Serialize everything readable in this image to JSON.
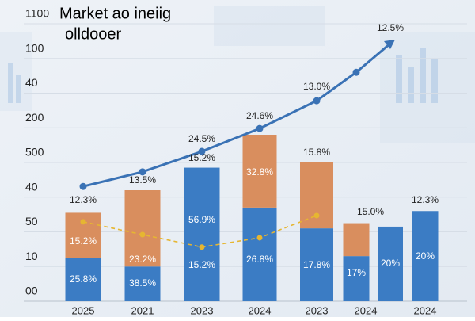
{
  "chart_data": {
    "type": "bar",
    "title": [
      "Market ao ineiig",
      "olldooer"
    ],
    "categories": [
      "2025",
      "2021",
      "2023",
      "2024",
      "2023",
      "2024",
      null,
      "2024"
    ],
    "series": [
      {
        "color": "#3b7cc4",
        "values": [
          1.25,
          1.0,
          3.85,
          2.7,
          2.1,
          1.3,
          2.15,
          2.6
        ]
      },
      {
        "color": "#d98e5e",
        "values": [
          1.3,
          2.2,
          0,
          2.1,
          1.9,
          0.95,
          0,
          0
        ]
      }
    ],
    "lines": [
      {
        "color": "#3a72b5",
        "style": "solid",
        "arrow": true,
        "values": [
          3.31,
          3.73,
          4.32,
          4.98,
          5.78,
          6.6,
          7.43,
          null
        ]
      },
      {
        "color": "#e6b631",
        "style": "dashed",
        "arrow": false,
        "values": [
          2.29,
          1.92,
          1.56,
          1.83,
          2.47,
          null,
          null,
          null
        ]
      }
    ],
    "ylim": [
      0,
      8
    ],
    "yticks": [
      {
        "value": 0,
        "label": "00"
      },
      {
        "value": 1,
        "label": "10"
      },
      {
        "value": 2,
        "label": "50"
      },
      {
        "value": 3,
        "label": "40"
      },
      {
        "value": 4,
        "label": "500"
      },
      {
        "value": 5,
        "label": "200"
      },
      {
        "value": 6,
        "label": "40"
      },
      {
        "value": 7,
        "label": "100"
      },
      {
        "value": 8,
        "label": "1100"
      }
    ],
    "grid": true,
    "annotations": [
      "12.3%",
      "13.5%",
      "24.5%",
      "15.2%",
      "24.6%",
      "15.8%",
      "13.0%",
      "12.5%",
      "15.0%",
      "12.3%",
      "15.2%",
      "25.8%",
      "23.2%",
      "38.5%",
      "56.9%",
      "15.2%",
      "32.8%",
      "26.8%",
      "17.8%",
      "17%",
      "20%",
      "20%"
    ]
  }
}
